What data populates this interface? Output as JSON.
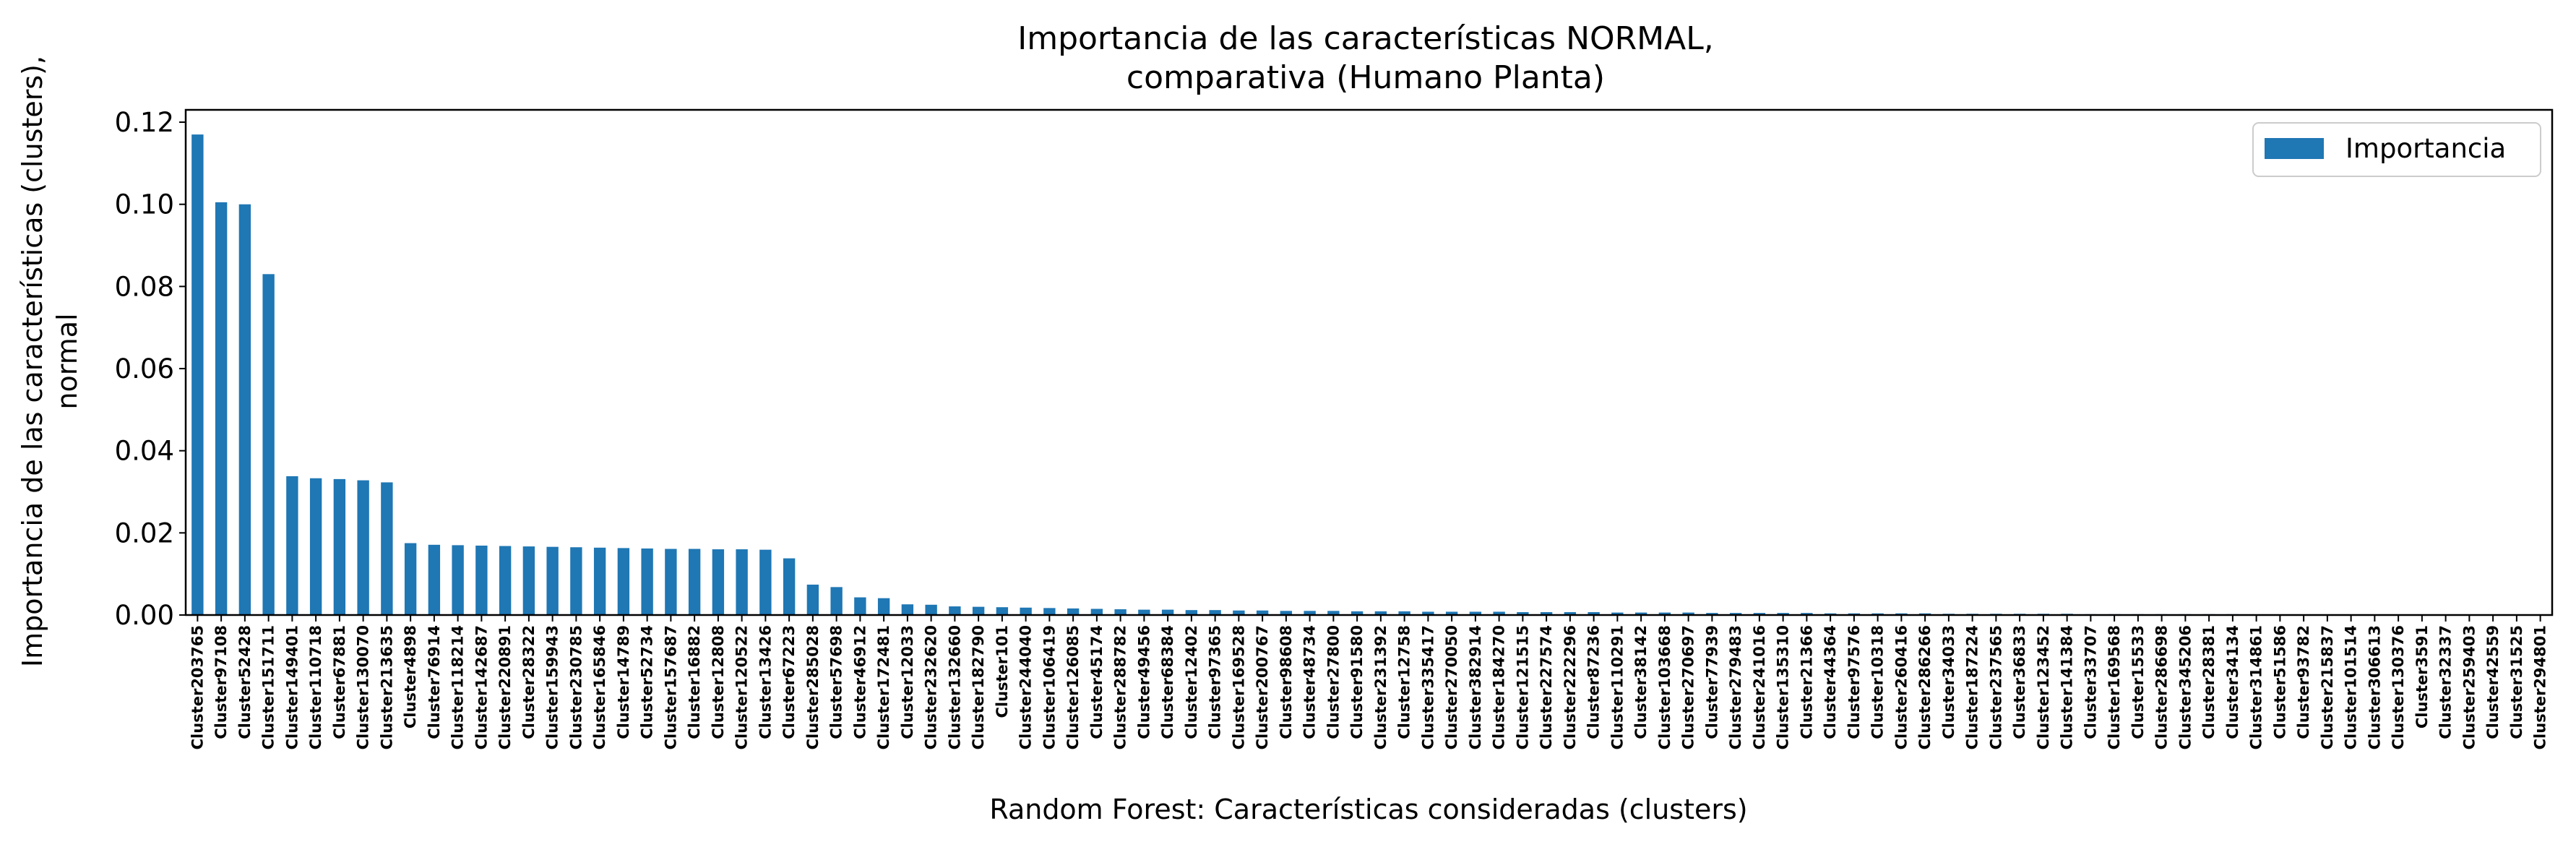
{
  "chart_data": {
    "type": "bar",
    "title_line1": "Importancia de las características NORMAL,",
    "title_line2": "comparativa (Humano Planta)",
    "xlabel": "Random Forest: Características consideradas (clusters)",
    "ylabel_line1": "Importancia de las características (clusters),",
    "ylabel_line2": "normal",
    "ylim": [
      0,
      0.123
    ],
    "yticks": [
      "0.00",
      "0.02",
      "0.04",
      "0.06",
      "0.08",
      "0.10",
      "0.12"
    ],
    "grid": false,
    "legend_position": "top-right",
    "bar_color": "#1f77b4",
    "series": [
      {
        "name": "Importancia"
      }
    ],
    "categories": [
      "Cluster203765",
      "Cluster97108",
      "Cluster52428",
      "Cluster151711",
      "Cluster149401",
      "Cluster110718",
      "Cluster67881",
      "Cluster130070",
      "Cluster213635",
      "Cluster4898",
      "Cluster76914",
      "Cluster118214",
      "Cluster142687",
      "Cluster220891",
      "Cluster28322",
      "Cluster159943",
      "Cluster230785",
      "Cluster165846",
      "Cluster14789",
      "Cluster52734",
      "Cluster157687",
      "Cluster16882",
      "Cluster12808",
      "Cluster120522",
      "Cluster13426",
      "Cluster67223",
      "Cluster285028",
      "Cluster57698",
      "Cluster46912",
      "Cluster172481",
      "Cluster12033",
      "Cluster232620",
      "Cluster132660",
      "Cluster182790",
      "Cluster101",
      "Cluster244040",
      "Cluster106419",
      "Cluster126085",
      "Cluster45174",
      "Cluster288782",
      "Cluster49456",
      "Cluster68384",
      "Cluster12402",
      "Cluster97365",
      "Cluster169528",
      "Cluster200767",
      "Cluster98608",
      "Cluster48734",
      "Cluster27800",
      "Cluster91580",
      "Cluster231392",
      "Cluster12758",
      "Cluster335417",
      "Cluster270050",
      "Cluster382914",
      "Cluster184270",
      "Cluster121515",
      "Cluster227574",
      "Cluster222296",
      "Cluster87236",
      "Cluster110291",
      "Cluster38142",
      "Cluster103668",
      "Cluster270697",
      "Cluster77939",
      "Cluster279483",
      "Cluster241016",
      "Cluster135310",
      "Cluster21366",
      "Cluster44364",
      "Cluster97576",
      "Cluster10318",
      "Cluster260416",
      "Cluster286266",
      "Cluster34033",
      "Cluster187224",
      "Cluster237565",
      "Cluster36833",
      "Cluster123452",
      "Cluster141384",
      "Cluster33707",
      "Cluster169568",
      "Cluster15533",
      "Cluster286698",
      "Cluster345206",
      "Cluster28381",
      "Cluster34134",
      "Cluster314861",
      "Cluster51586",
      "Cluster93782",
      "Cluster215837",
      "Cluster101514",
      "Cluster306613",
      "Cluster130376",
      "Cluster3591",
      "Cluster32337",
      "Cluster259403",
      "Cluster42559",
      "Cluster31525",
      "Cluster294801"
    ],
    "values": [
      0.117,
      0.1005,
      0.1,
      0.083,
      0.0338,
      0.0333,
      0.0331,
      0.0328,
      0.0323,
      0.0175,
      0.0171,
      0.017,
      0.0169,
      0.0168,
      0.0167,
      0.0166,
      0.0165,
      0.0164,
      0.0163,
      0.0162,
      0.0161,
      0.0161,
      0.016,
      0.016,
      0.0159,
      0.0138,
      0.0074,
      0.0068,
      0.0043,
      0.0041,
      0.0026,
      0.0025,
      0.0021,
      0.002,
      0.0019,
      0.0018,
      0.0017,
      0.0016,
      0.0015,
      0.0014,
      0.0013,
      0.0013,
      0.0012,
      0.0012,
      0.0011,
      0.0011,
      0.001,
      0.001,
      0.001,
      0.0009,
      0.0009,
      0.0009,
      0.0008,
      0.0008,
      0.0008,
      0.0008,
      0.0007,
      0.0007,
      0.0007,
      0.0007,
      0.0006,
      0.0006,
      0.0006,
      0.0006,
      0.0005,
      0.0005,
      0.0005,
      0.0005,
      0.0005,
      0.0004,
      0.0004,
      0.0004,
      0.0004,
      0.0004,
      0.0003,
      0.0003,
      0.0003,
      0.0003,
      0.0003,
      0.0003,
      0.0002,
      0.0002,
      0.0002,
      0.0002,
      0.0002,
      0.0002,
      0.0002,
      0.0001,
      0.0001,
      0.0001,
      0.0001,
      0.0001,
      0.0001,
      0.0001,
      0.0001,
      0.0001,
      5e-05,
      5e-05,
      5e-05,
      3e-05
    ]
  }
}
